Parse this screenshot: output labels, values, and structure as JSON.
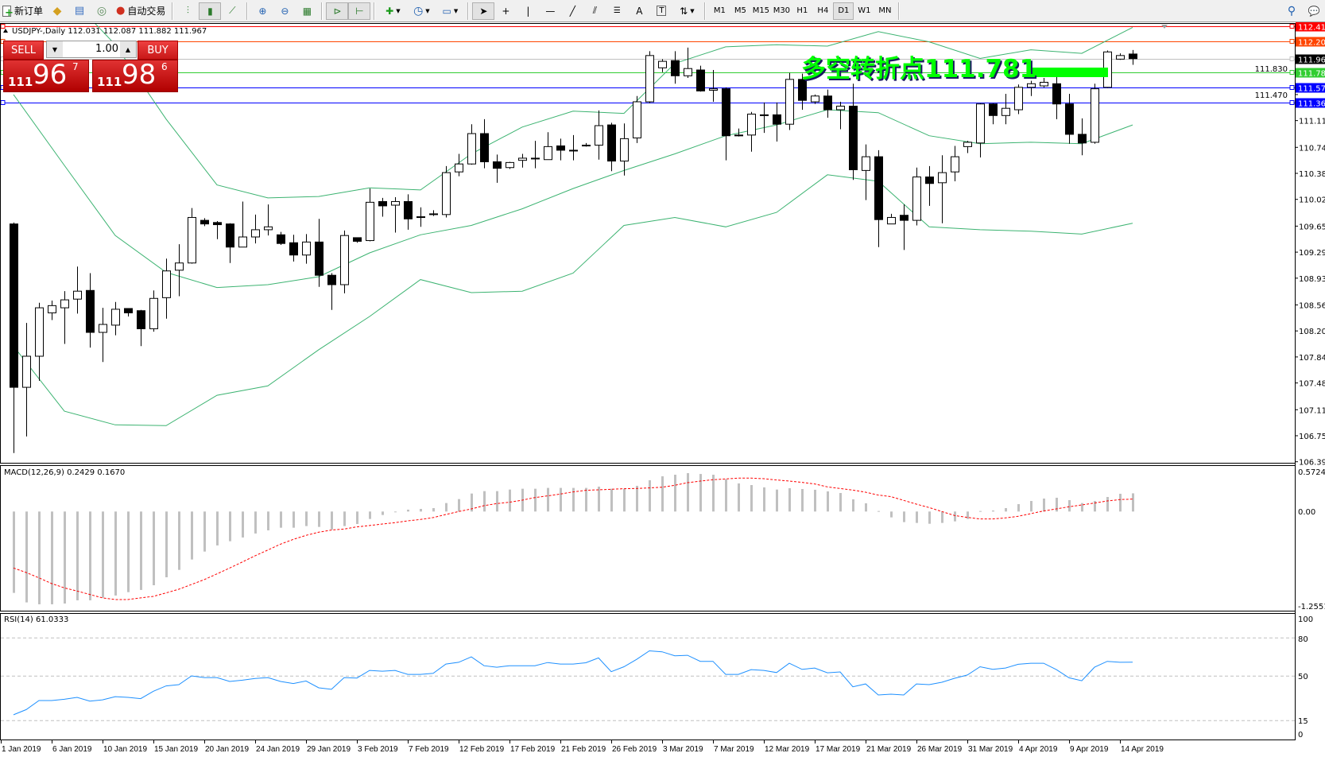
{
  "toolbar": {
    "new_order": "新订单",
    "auto_trading": "自动交易",
    "timeframes": [
      "M1",
      "M5",
      "M15",
      "M30",
      "H1",
      "H4",
      "D1",
      "W1",
      "MN"
    ],
    "active_timeframe": "D1",
    "drawing_text_tool": "A",
    "text_label_tool": "T"
  },
  "chart": {
    "header": "USDJPY-,Daily  112.031 112.087 111.882 111.967",
    "annotation": "多空转折点111.781",
    "colors": {
      "bull_body": "#ffffff",
      "bear_body": "#000000",
      "bands": "#3cb371",
      "annotation": "#00ff00",
      "macd_hist": "#c0c0c0",
      "macd_signal": "#ff0000",
      "rsi": "#1e90ff"
    }
  },
  "trade_panel": {
    "sell_label": "SELL",
    "buy_label": "BUY",
    "lot": "1.00",
    "sell_price": {
      "big": "111",
      "main": "96",
      "pip": "7"
    },
    "buy_price": {
      "big": "111",
      "main": "98",
      "pip": "6"
    }
  },
  "price_axis": {
    "ticks": [
      "111.830",
      "111.470",
      "111.110",
      "110.740",
      "110.380",
      "110.020",
      "109.650",
      "109.290",
      "108.930",
      "108.560",
      "108.200",
      "107.840",
      "107.480",
      "107.110",
      "106.750",
      "106.390"
    ],
    "levels": [
      {
        "value": "112.410",
        "color": "#ff0000",
        "label_bg": "#ff0000"
      },
      {
        "value": "112.206",
        "color": "#ff4500",
        "label_bg": "#ff4500"
      },
      {
        "value": "111.967",
        "color": "#c0c0c0",
        "label_bg": "#000000"
      },
      {
        "value": "111.781",
        "color": "#32cd32",
        "label_bg": "#32cd32"
      },
      {
        "value": "111.572",
        "color": "#0000ff",
        "label_bg": "#0000ff"
      },
      {
        "value": "111.363",
        "color": "#0000ff",
        "label_bg": "#0000ff"
      }
    ]
  },
  "macd": {
    "label": "MACD(12,26,9) 0.2429 0.1670",
    "axis": [
      "0.5724",
      "0.00",
      "-1.2551"
    ]
  },
  "rsi": {
    "label": "RSI(14) 61.0333",
    "axis": [
      "100",
      "80",
      "50",
      "15",
      "0"
    ]
  },
  "date_axis": [
    "1 Jan 2019",
    "6 Jan 2019",
    "10 Jan 2019",
    "15 Jan 2019",
    "20 Jan 2019",
    "24 Jan 2019",
    "29 Jan 2019",
    "3 Feb 2019",
    "7 Feb 2019",
    "12 Feb 2019",
    "17 Feb 2019",
    "21 Feb 2019",
    "26 Feb 2019",
    "3 Mar 2019",
    "7 Mar 2019",
    "12 Mar 2019",
    "17 Mar 2019",
    "21 Mar 2019",
    "26 Mar 2019",
    "31 Mar 2019",
    "4 Apr 2019",
    "9 Apr 2019",
    "14 Apr 2019"
  ],
  "chart_data": {
    "type": "candlestick",
    "symbol": "USDJPY-",
    "timeframe": "Daily",
    "ylim": [
      106.39,
      112.41
    ],
    "ohlc": [
      [
        109.68,
        109.7,
        106.51,
        107.42
      ],
      [
        107.42,
        108.31,
        106.74,
        107.85
      ],
      [
        107.85,
        108.59,
        107.51,
        108.52
      ],
      [
        108.45,
        108.62,
        108.35,
        108.55
      ],
      [
        108.52,
        108.75,
        108.02,
        108.63
      ],
      [
        108.64,
        109.09,
        108.44,
        108.75
      ],
      [
        108.76,
        109.0,
        107.97,
        108.18
      ],
      [
        108.18,
        108.52,
        107.77,
        108.29
      ],
      [
        108.28,
        108.6,
        108.14,
        108.5
      ],
      [
        108.51,
        108.51,
        108.4,
        108.45
      ],
      [
        108.48,
        108.49,
        107.99,
        108.23
      ],
      [
        108.23,
        108.76,
        108.19,
        108.65
      ],
      [
        108.66,
        109.2,
        108.37,
        109.03
      ],
      [
        109.04,
        109.4,
        108.68,
        109.14
      ],
      [
        109.14,
        109.9,
        109.13,
        109.77
      ],
      [
        109.73,
        109.76,
        109.65,
        109.68
      ],
      [
        109.7,
        109.72,
        109.47,
        109.67
      ],
      [
        109.68,
        109.69,
        109.14,
        109.36
      ],
      [
        109.36,
        109.99,
        109.36,
        109.5
      ],
      [
        109.5,
        109.81,
        109.41,
        109.6
      ],
      [
        109.6,
        109.95,
        109.52,
        109.64
      ],
      [
        109.53,
        109.57,
        109.39,
        109.41
      ],
      [
        109.42,
        109.53,
        109.16,
        109.25
      ],
      [
        109.25,
        109.54,
        109.13,
        109.43
      ],
      [
        109.43,
        109.75,
        108.81,
        108.97
      ],
      [
        108.97,
        109.0,
        108.49,
        108.84
      ],
      [
        108.84,
        109.59,
        108.72,
        109.52
      ],
      [
        109.49,
        109.49,
        109.42,
        109.44
      ],
      [
        109.45,
        110.17,
        109.44,
        109.98
      ],
      [
        109.99,
        110.04,
        109.78,
        109.93
      ],
      [
        109.94,
        110.05,
        109.56,
        109.99
      ],
      [
        109.99,
        110.09,
        109.6,
        109.75
      ],
      [
        109.78,
        109.91,
        109.64,
        109.77
      ],
      [
        109.82,
        109.87,
        109.79,
        109.81
      ],
      [
        109.81,
        110.48,
        109.77,
        110.39
      ],
      [
        110.4,
        110.65,
        110.34,
        110.51
      ],
      [
        110.51,
        111.06,
        110.5,
        110.93
      ],
      [
        110.93,
        111.13,
        110.45,
        110.54
      ],
      [
        110.54,
        110.64,
        110.25,
        110.45
      ],
      [
        110.46,
        110.54,
        110.44,
        110.53
      ],
      [
        110.56,
        110.65,
        110.46,
        110.59
      ],
      [
        110.59,
        110.83,
        110.45,
        110.59
      ],
      [
        110.57,
        110.95,
        110.57,
        110.75
      ],
      [
        110.76,
        110.86,
        110.56,
        110.7
      ],
      [
        110.7,
        110.91,
        110.56,
        110.7
      ],
      [
        110.77,
        110.8,
        110.75,
        110.77
      ],
      [
        110.77,
        111.25,
        110.57,
        111.04
      ],
      [
        111.05,
        111.08,
        110.41,
        110.55
      ],
      [
        110.55,
        111.07,
        110.35,
        110.86
      ],
      [
        110.87,
        111.45,
        110.8,
        111.37
      ],
      [
        111.37,
        112.07,
        111.35,
        112.01
      ],
      [
        111.84,
        111.96,
        111.78,
        111.93
      ],
      [
        111.94,
        112.07,
        111.62,
        111.73
      ],
      [
        111.73,
        112.12,
        111.7,
        111.83
      ],
      [
        111.81,
        111.87,
        111.51,
        111.52
      ],
      [
        111.53,
        111.81,
        111.37,
        111.55
      ],
      [
        111.55,
        111.57,
        110.56,
        110.9
      ],
      [
        110.91,
        111.0,
        110.89,
        110.91
      ],
      [
        110.91,
        111.23,
        110.68,
        111.2
      ],
      [
        111.18,
        111.36,
        110.94,
        111.19
      ],
      [
        111.19,
        111.36,
        110.82,
        111.06
      ],
      [
        111.06,
        111.77,
        110.98,
        111.68
      ],
      [
        111.68,
        111.76,
        111.26,
        111.39
      ],
      [
        111.37,
        111.47,
        111.34,
        111.45
      ],
      [
        111.45,
        111.54,
        111.15,
        111.26
      ],
      [
        111.26,
        111.37,
        110.99,
        111.31
      ],
      [
        111.31,
        111.62,
        110.29,
        110.43
      ],
      [
        110.42,
        110.78,
        110.01,
        110.61
      ],
      [
        110.61,
        110.7,
        109.36,
        109.74
      ],
      [
        109.68,
        109.82,
        109.68,
        109.77
      ],
      [
        109.8,
        109.95,
        109.32,
        109.73
      ],
      [
        109.73,
        110.46,
        109.66,
        110.33
      ],
      [
        110.33,
        110.48,
        109.93,
        110.24
      ],
      [
        110.25,
        110.63,
        109.69,
        110.39
      ],
      [
        110.4,
        110.76,
        110.27,
        110.61
      ],
      [
        110.75,
        110.83,
        110.66,
        110.81
      ],
      [
        110.8,
        111.35,
        110.6,
        111.34
      ],
      [
        111.34,
        111.35,
        111.06,
        111.18
      ],
      [
        111.18,
        111.48,
        111.06,
        111.28
      ],
      [
        111.26,
        111.61,
        111.2,
        111.57
      ],
      [
        111.57,
        111.66,
        111.45,
        111.62
      ],
      [
        111.59,
        111.7,
        111.57,
        111.64
      ],
      [
        111.62,
        111.75,
        111.13,
        111.34
      ],
      [
        111.34,
        111.48,
        110.79,
        110.92
      ],
      [
        110.92,
        111.14,
        110.63,
        110.8
      ],
      [
        110.81,
        111.62,
        110.79,
        111.55
      ],
      [
        111.57,
        112.08,
        111.56,
        112.06
      ],
      [
        111.96,
        112.04,
        111.95,
        112.01
      ],
      [
        112.031,
        112.087,
        111.882,
        111.967
      ]
    ],
    "bands": {
      "bars": [
        0,
        4,
        8,
        12,
        16,
        20,
        24,
        28,
        32,
        36,
        40,
        44,
        48,
        52,
        56,
        60,
        64,
        68,
        72,
        76,
        80,
        84,
        88
      ],
      "upper": [
        113.5,
        112.9,
        112.16,
        111.13,
        110.22,
        110.04,
        110.06,
        110.18,
        110.15,
        110.65,
        111.02,
        111.24,
        111.21,
        111.9,
        112.13,
        112.16,
        112.14,
        112.34,
        112.2,
        111.97,
        112.09,
        112.04,
        112.4
      ],
      "middle": [
        111.47,
        110.49,
        109.52,
        109.01,
        108.8,
        108.84,
        108.95,
        109.28,
        109.53,
        109.66,
        109.89,
        110.17,
        110.42,
        110.65,
        110.9,
        111.05,
        111.26,
        111.22,
        110.9,
        110.79,
        110.81,
        110.79,
        111.05
      ],
      "lower": [
        107.99,
        107.09,
        106.9,
        106.89,
        107.31,
        107.44,
        107.94,
        108.4,
        108.91,
        108.73,
        108.75,
        109.0,
        109.66,
        109.77,
        109.64,
        109.84,
        110.36,
        110.27,
        109.64,
        109.6,
        109.58,
        109.54,
        109.69
      ]
    },
    "macd_hist": [
      -1.085,
      -1.212,
      -1.237,
      -1.237,
      -1.227,
      -1.184,
      -1.184,
      -1.149,
      -1.12,
      -1.075,
      -1.046,
      -0.983,
      -0.877,
      -0.778,
      -0.64,
      -0.534,
      -0.452,
      -0.396,
      -0.346,
      -0.293,
      -0.251,
      -0.216,
      -0.216,
      -0.194,
      -0.205,
      -0.24,
      -0.194,
      -0.166,
      -0.099,
      -0.046,
      0.0,
      0.025,
      0.035,
      0.046,
      0.113,
      0.166,
      0.24,
      0.272,
      0.272,
      0.293,
      0.304,
      0.304,
      0.315,
      0.315,
      0.315,
      0.315,
      0.332,
      0.304,
      0.304,
      0.343,
      0.417,
      0.47,
      0.491,
      0.512,
      0.501,
      0.491,
      0.431,
      0.375,
      0.353,
      0.322,
      0.293,
      0.311,
      0.3,
      0.29,
      0.269,
      0.247,
      0.163,
      0.11,
      0.007,
      -0.078,
      -0.141,
      -0.152,
      -0.163,
      -0.152,
      -0.131,
      -0.099,
      0.007,
      0.014,
      0.046,
      0.099,
      0.141,
      0.173,
      0.184,
      0.152,
      0.113,
      0.141,
      0.194,
      0.237,
      0.2429
    ],
    "macd_signal": [
      -0.753,
      -0.813,
      -0.884,
      -0.961,
      -1.018,
      -1.06,
      -1.106,
      -1.152,
      -1.174,
      -1.174,
      -1.152,
      -1.131,
      -1.085,
      -1.036,
      -0.972,
      -0.908,
      -0.831,
      -0.753,
      -0.672,
      -0.59,
      -0.513,
      -0.435,
      -0.371,
      -0.318,
      -0.276,
      -0.247,
      -0.233,
      -0.205,
      -0.187,
      -0.166,
      -0.148,
      -0.124,
      -0.106,
      -0.081,
      -0.039,
      0.0,
      0.035,
      0.078,
      0.106,
      0.124,
      0.152,
      0.187,
      0.209,
      0.233,
      0.262,
      0.283,
      0.29,
      0.297,
      0.304,
      0.308,
      0.315,
      0.325,
      0.35,
      0.385,
      0.406,
      0.424,
      0.435,
      0.445,
      0.445,
      0.438,
      0.421,
      0.406,
      0.389,
      0.368,
      0.329,
      0.308,
      0.286,
      0.258,
      0.219,
      0.198,
      0.148,
      0.099,
      0.053,
      0.0,
      -0.053,
      -0.078,
      -0.099,
      -0.099,
      -0.085,
      -0.064,
      -0.028,
      0.007,
      0.035,
      0.064,
      0.088,
      0.113,
      0.141,
      0.159,
      0.167
    ],
    "rsi": [
      19.6,
      23.7,
      30.8,
      30.8,
      31.8,
      33.3,
      30.4,
      31.4,
      33.9,
      33.3,
      32.3,
      38.1,
      42.3,
      43.3,
      50.2,
      48.9,
      48.9,
      45.8,
      46.8,
      48.1,
      48.9,
      45.8,
      44.2,
      46.2,
      40.8,
      39.6,
      48.9,
      48.5,
      54.5,
      53.9,
      54.5,
      51.4,
      51.4,
      52.2,
      59.5,
      60.9,
      65.1,
      58.2,
      57.0,
      58.2,
      58.2,
      58.2,
      60.7,
      59.5,
      59.5,
      60.5,
      64.3,
      53.5,
      57.4,
      63.2,
      69.9,
      69.1,
      66.0,
      66.4,
      61.6,
      61.6,
      51.4,
      51.4,
      55.1,
      54.5,
      52.8,
      60.1,
      55.3,
      56.4,
      52.6,
      53.3,
      41.6,
      43.9,
      35.2,
      35.8,
      35.2,
      43.9,
      43.3,
      45.2,
      48.3,
      50.9,
      57.4,
      55.3,
      56.4,
      59.3,
      60.1,
      60.1,
      55.1,
      48.7,
      46.4,
      57.0,
      61.6,
      60.9,
      61.03
    ],
    "rsi_levels": [
      80,
      50,
      15
    ],
    "macd_range": [
      -1.2551,
      0.5724
    ],
    "rsi_range": [
      0,
      100
    ]
  }
}
